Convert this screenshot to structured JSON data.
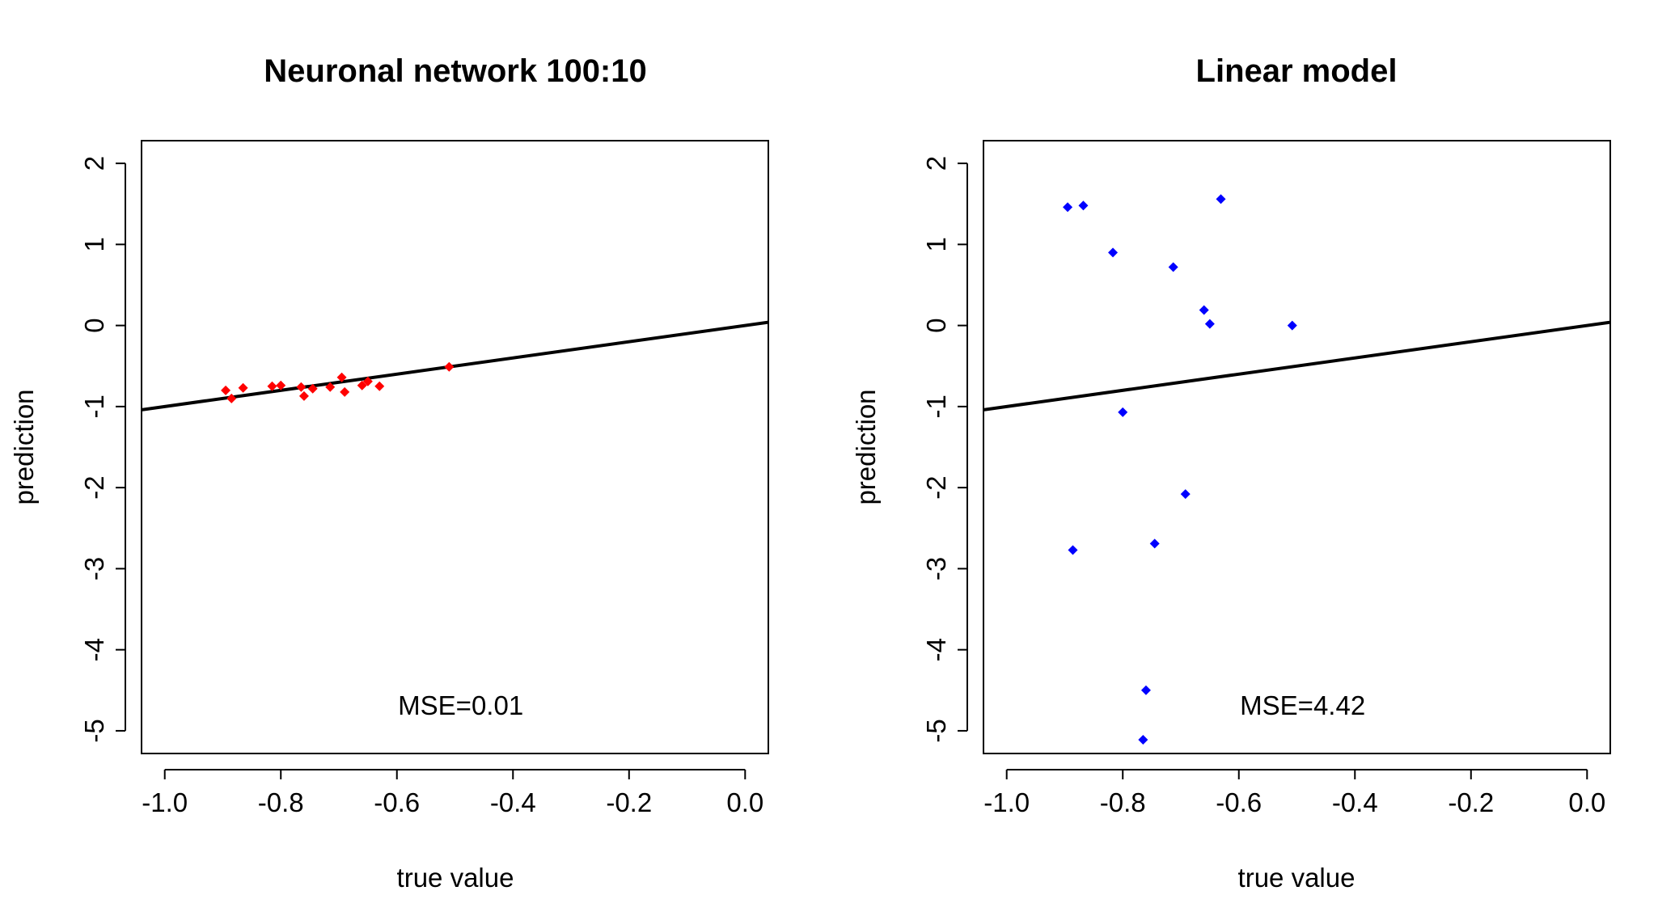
{
  "figure": {
    "background": "#ffffff"
  },
  "chart_data": [
    {
      "type": "scatter",
      "title": "Neuronal network 100:10",
      "xlabel": "true value",
      "ylabel": "prediction",
      "xlim": [
        -1.04,
        0.04
      ],
      "ylim": [
        -5.28,
        2.28
      ],
      "x_ticks": [
        -1.0,
        -0.8,
        -0.6,
        -0.4,
        -0.2,
        0.0
      ],
      "x_tick_labels": [
        "-1.0",
        "-0.8",
        "-0.6",
        "-0.4",
        "-0.2",
        "0.0"
      ],
      "y_ticks": [
        -5,
        -4,
        -3,
        -2,
        -1,
        0,
        1,
        2
      ],
      "y_tick_labels": [
        "-5",
        "-4",
        "-3",
        "-2",
        "-1",
        "0",
        "1",
        "2"
      ],
      "grid": false,
      "point_color": "#ff0000",
      "reference_line": {
        "x": [
          -1.04,
          0.04
        ],
        "y": [
          -1.04,
          0.04
        ],
        "color": "#000000"
      },
      "annotation": {
        "text": "MSE=0.01",
        "x": -0.49,
        "y": -4.8
      },
      "series": [
        {
          "x": [
            -0.895,
            -0.885,
            -0.865,
            -0.815,
            -0.8,
            -0.765,
            -0.76,
            -0.745,
            -0.715,
            -0.695,
            -0.69,
            -0.66,
            -0.65,
            -0.63,
            -0.51
          ],
          "y": [
            -0.8,
            -0.9,
            -0.77,
            -0.75,
            -0.74,
            -0.76,
            -0.87,
            -0.78,
            -0.76,
            -0.64,
            -0.82,
            -0.74,
            -0.69,
            -0.75,
            -0.51
          ]
        }
      ]
    },
    {
      "type": "scatter",
      "title": "Linear model",
      "xlabel": "true value",
      "ylabel": "prediction",
      "xlim": [
        -1.04,
        0.04
      ],
      "ylim": [
        -5.28,
        2.28
      ],
      "x_ticks": [
        -1.0,
        -0.8,
        -0.6,
        -0.4,
        -0.2,
        0.0
      ],
      "x_tick_labels": [
        "-1.0",
        "-0.8",
        "-0.6",
        "-0.4",
        "-0.2",
        "0.0"
      ],
      "y_ticks": [
        -5,
        -4,
        -3,
        -2,
        -1,
        0,
        1,
        2
      ],
      "y_tick_labels": [
        "-5",
        "-4",
        "-3",
        "-2",
        "-1",
        "0",
        "1",
        "2"
      ],
      "grid": false,
      "point_color": "#0000ff",
      "reference_line": {
        "x": [
          -1.04,
          0.04
        ],
        "y": [
          -1.04,
          0.04
        ],
        "color": "#000000"
      },
      "annotation": {
        "text": "MSE=4.42",
        "x": -0.49,
        "y": -4.8
      },
      "series": [
        {
          "x": [
            -0.895,
            -0.868,
            -0.817,
            -0.713,
            -0.631,
            -0.66,
            -0.65,
            -0.508,
            -0.8,
            -0.692,
            -0.886,
            -0.745,
            -0.76,
            -0.765
          ],
          "y": [
            1.46,
            1.48,
            0.9,
            0.72,
            1.56,
            0.19,
            0.02,
            0.0,
            -1.07,
            -2.08,
            -2.77,
            -2.69,
            -4.5,
            -5.11
          ]
        }
      ]
    }
  ]
}
